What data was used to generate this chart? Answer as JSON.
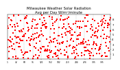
{
  "title": "Milwaukee Weather Solar Radiation",
  "subtitle": "Avg per Day W/m²/minute",
  "title_fontsize": 3.8,
  "background_color": "#ffffff",
  "n_points": 365,
  "ylim": [
    0,
    9
  ],
  "yticks": [
    1,
    2,
    3,
    4,
    5,
    6,
    7,
    8
  ],
  "ytick_labels": [
    "1",
    "2",
    "3",
    "4",
    "5",
    "6",
    "7",
    "8"
  ],
  "grid_color": "#999999",
  "dot_color_red": "#ff0000",
  "dot_color_black": "#000000",
  "vline_positions": [
    31,
    59,
    90,
    120,
    151,
    181,
    212,
    243,
    273,
    304,
    334
  ],
  "xtick_fontsize": 2.2,
  "ytick_fontsize": 2.8,
  "dot_size_red": 1.2,
  "dot_size_black": 0.5,
  "ylabel_right": true
}
